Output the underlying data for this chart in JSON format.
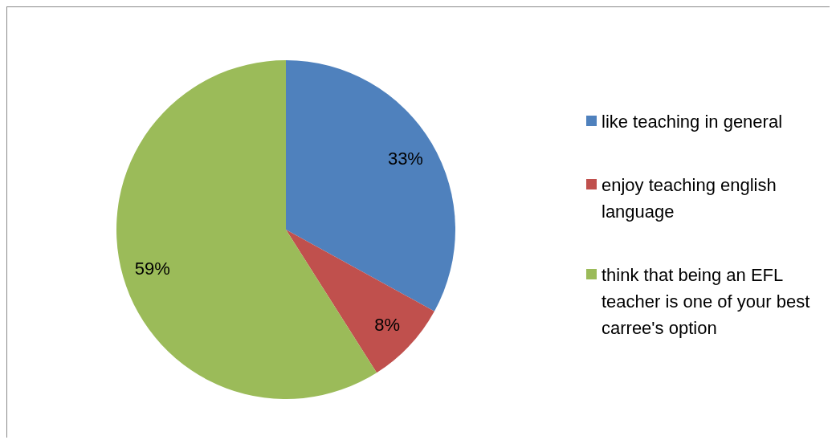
{
  "chart_data": {
    "type": "pie",
    "categories": [
      "like teaching in general",
      "enjoy teaching english language",
      "think that being an EFL teacher is one of your best carree's option"
    ],
    "values": [
      33,
      8,
      59
    ],
    "colors": [
      "#4f81bd",
      "#c0504d",
      "#9bbb59"
    ],
    "value_labels": [
      "33%",
      "8%",
      "59%"
    ],
    "legend": "right"
  }
}
